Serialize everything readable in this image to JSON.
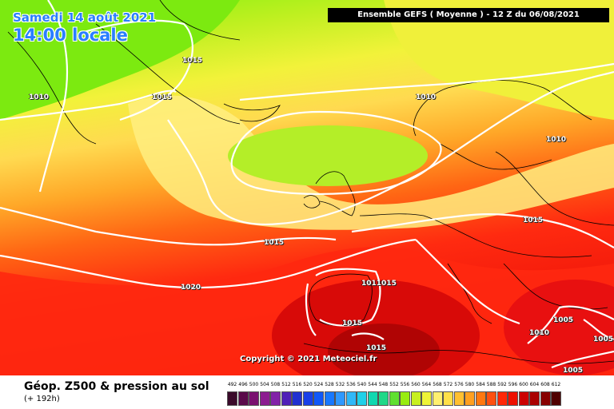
{
  "overlay": {
    "date_text": "Samedi 14 août 2021",
    "local_time_text": "14:00 locale",
    "run_text": "Ensemble GEFS  ( Moyenne )  -  12 Z du 06/08/2021",
    "copyright": "Copyright © 2021 Meteociel.fr"
  },
  "isobar_labels": [
    {
      "text": "1015"
    },
    {
      "text": "1010"
    },
    {
      "text": "1015"
    },
    {
      "text": "1010"
    },
    {
      "text": "1010"
    },
    {
      "text": "1015"
    },
    {
      "text": "1015"
    },
    {
      "text": "1020"
    },
    {
      "text": "1011015"
    },
    {
      "text": "1015"
    },
    {
      "text": "1015"
    },
    {
      "text": "1005"
    },
    {
      "text": "1010"
    },
    {
      "text": "1005"
    },
    {
      "text": "1005"
    }
  ],
  "footer": {
    "title": "Géop. Z500 & pression au sol",
    "subtitle": "(+ 192h)"
  },
  "legend": {
    "labels": [
      "492",
      "496",
      "500",
      "504",
      "508",
      "512",
      "516",
      "520",
      "524",
      "528",
      "532",
      "536",
      "540",
      "544",
      "548",
      "552",
      "556",
      "560",
      "564",
      "568",
      "572",
      "576",
      "580",
      "584",
      "588",
      "592",
      "596",
      "600",
      "604",
      "608",
      "612"
    ],
    "colors": [
      "#3a0a2a",
      "#5a0a4a",
      "#7a1070",
      "#8c1c90",
      "#8222a8",
      "#5020b8",
      "#2030d0",
      "#1840e8",
      "#1058f8",
      "#1878ff",
      "#3098ff",
      "#30b8f8",
      "#20d0e8",
      "#10d8b0",
      "#20d888",
      "#60e030",
      "#98ec10",
      "#c8f020",
      "#eef438",
      "#fff070",
      "#ffe048",
      "#ffc030",
      "#ffa020",
      "#ff7810",
      "#ff5010",
      "#ff2808",
      "#ee1000",
      "#cc0000",
      "#aa0000",
      "#880000",
      "#500000"
    ]
  }
}
